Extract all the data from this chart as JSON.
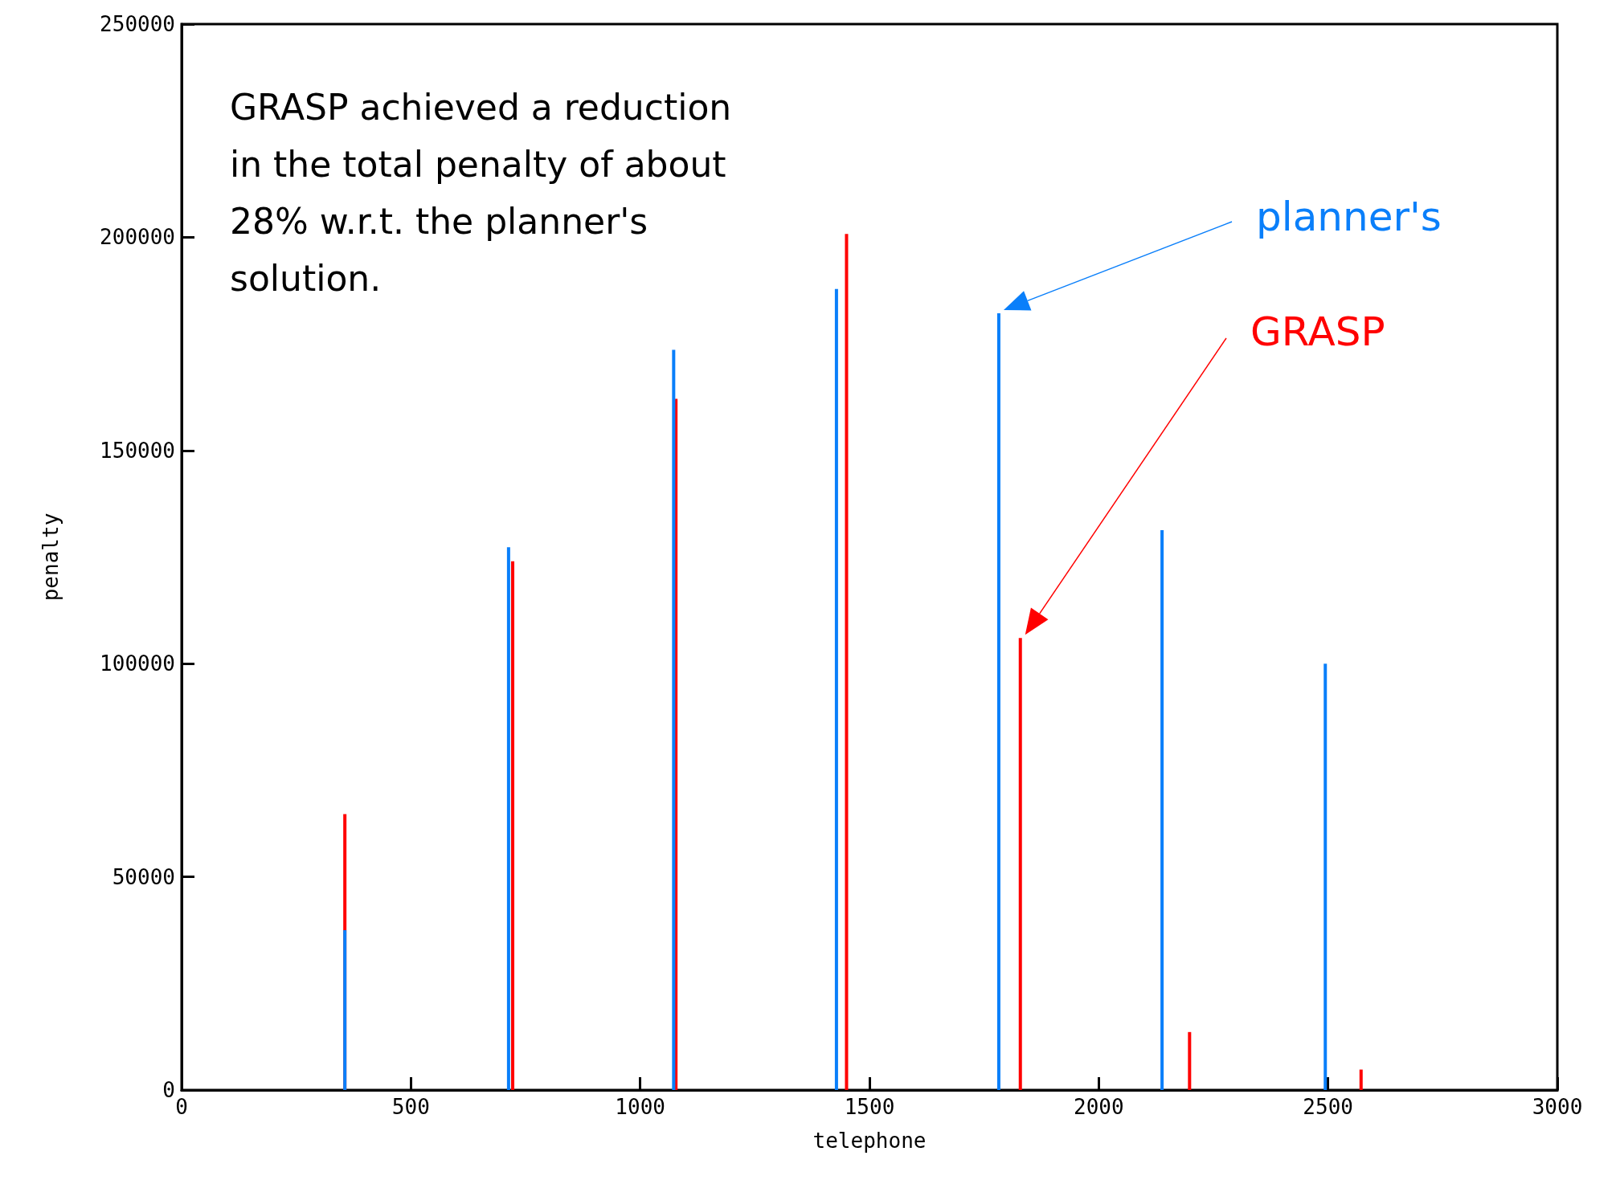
{
  "chart_data": {
    "type": "bar",
    "xlabel": "telephone",
    "ylabel": "penalty",
    "xlim": [
      0,
      3000
    ],
    "xticks": [
      0,
      500,
      1000,
      1500,
      2000,
      2500,
      3000
    ],
    "ylim": [
      0,
      250000
    ],
    "yticks": [
      0,
      50000,
      100000,
      150000,
      200000,
      250000
    ],
    "grid": false,
    "legend": false,
    "annotations": [
      "GRASP achieved a reduction\nin the total penalty of about\n28% w.r.t. the planner's\nsolution."
    ],
    "series": [
      {
        "name": "planner's",
        "color": "#0a7ffa",
        "x": [
          356,
          713,
          1073,
          1428,
          1782,
          2138,
          2494
        ],
        "values": [
          37500,
          127300,
          173600,
          187900,
          182200,
          131300,
          100000
        ]
      },
      {
        "name": "GRASP",
        "color": "#ff0000",
        "x": [
          356,
          722,
          1078,
          1450,
          1829,
          2198,
          2572
        ],
        "values": [
          64700,
          124000,
          162100,
          200800,
          106000,
          13600,
          4800
        ]
      }
    ]
  }
}
